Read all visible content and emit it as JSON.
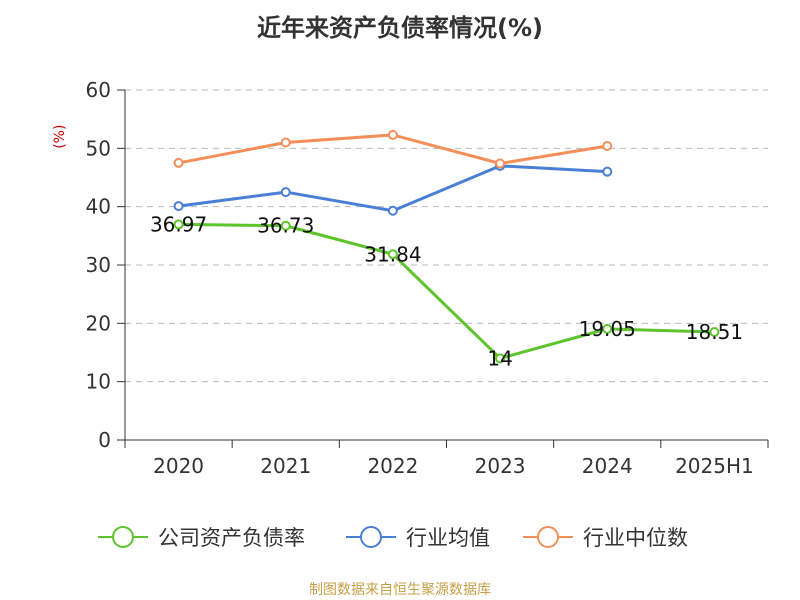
{
  "title": "近年来资产负债率情况(%)",
  "source_note": "制图数据来自恒生聚源数据库",
  "chart_data": {
    "type": "line",
    "title": "近年来资产负债率情况(%)",
    "ylabel": "(%)",
    "xlabel": "",
    "categories": [
      "2020",
      "2021",
      "2022",
      "2023",
      "2024",
      "2025H1"
    ],
    "ylim": [
      0,
      60
    ],
    "yticks": [
      0,
      10,
      20,
      30,
      40,
      50,
      60
    ],
    "grid": true,
    "legend_position": "bottom",
    "series": [
      {
        "name": "公司资产负债率",
        "color": "#5dc42b",
        "values": [
          36.97,
          36.73,
          31.84,
          14,
          19.05,
          18.51
        ],
        "labels": [
          "36.97",
          "36.73",
          "31.84",
          "14",
          "19.05",
          "18.51"
        ],
        "show_labels": true
      },
      {
        "name": "行业均值",
        "color": "#4a7fd6",
        "values": [
          40.1,
          42.5,
          39.3,
          47.0,
          46.0,
          null
        ],
        "show_labels": false
      },
      {
        "name": "行业中位数",
        "color": "#f58f5a",
        "values": [
          47.5,
          51.0,
          52.3,
          47.4,
          50.4,
          null
        ],
        "show_labels": false
      }
    ]
  }
}
